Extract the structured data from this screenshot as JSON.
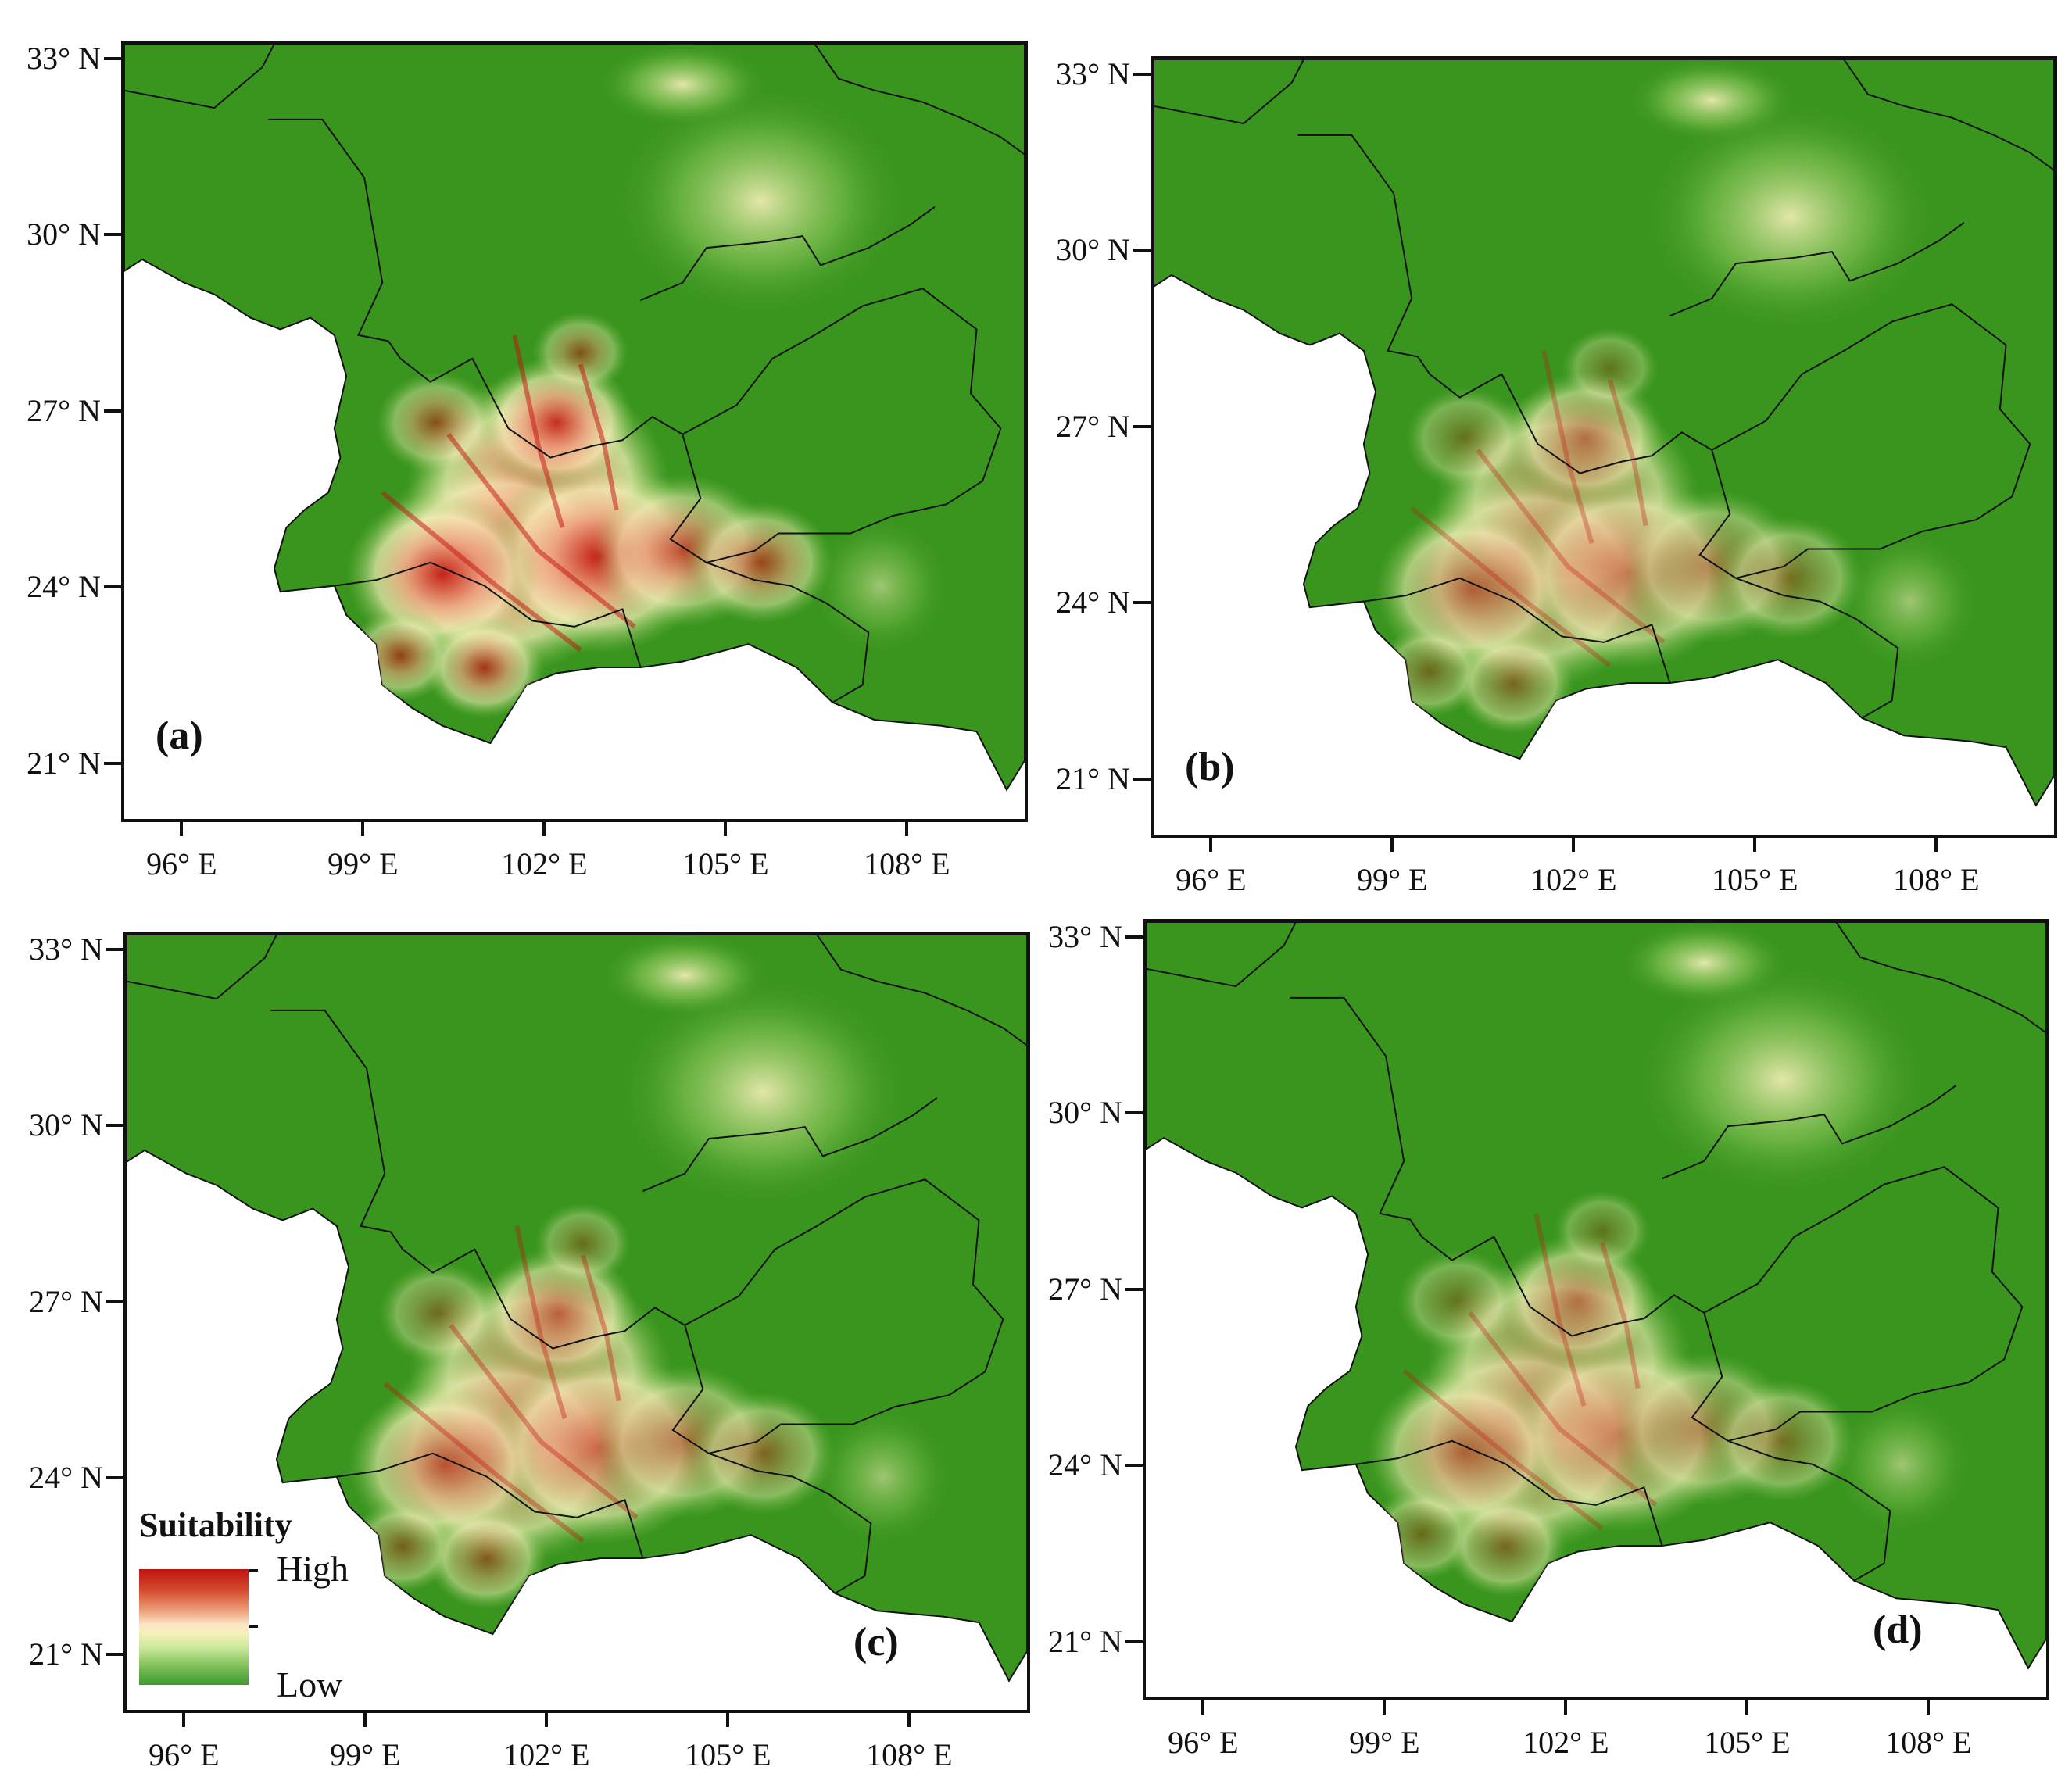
{
  "figure": {
    "y_labels": [
      "33° N",
      "30° N",
      "27° N",
      "24° N",
      "21° N"
    ],
    "x_labels": [
      "96° E",
      "99° E",
      "102° E",
      "105° E",
      "108° E"
    ],
    "lat_values": [
      33,
      30,
      27,
      24,
      21
    ],
    "lon_values": [
      96,
      99,
      102,
      105,
      108
    ],
    "lat_range": [
      20,
      33.3
    ],
    "lon_range": [
      95,
      110
    ],
    "colors": {
      "land_low": "#3a951f",
      "land_mid": "#8cc85a",
      "transition": "#f6efb9",
      "moderate": "#eda27f",
      "high": "#c2120d",
      "boundary": "#111111",
      "sea": "#ffffff"
    },
    "panels": [
      {
        "id": "a",
        "label": "(a)",
        "high_intensity": 1.0
      },
      {
        "id": "b",
        "label": "(b)",
        "high_intensity": 0.62
      },
      {
        "id": "c",
        "label": "(c)",
        "high_intensity": 0.72
      },
      {
        "id": "d",
        "label": "(d)",
        "high_intensity": 0.6
      }
    ]
  },
  "legend": {
    "title": "Suitability",
    "high": "High",
    "low": "Low"
  }
}
